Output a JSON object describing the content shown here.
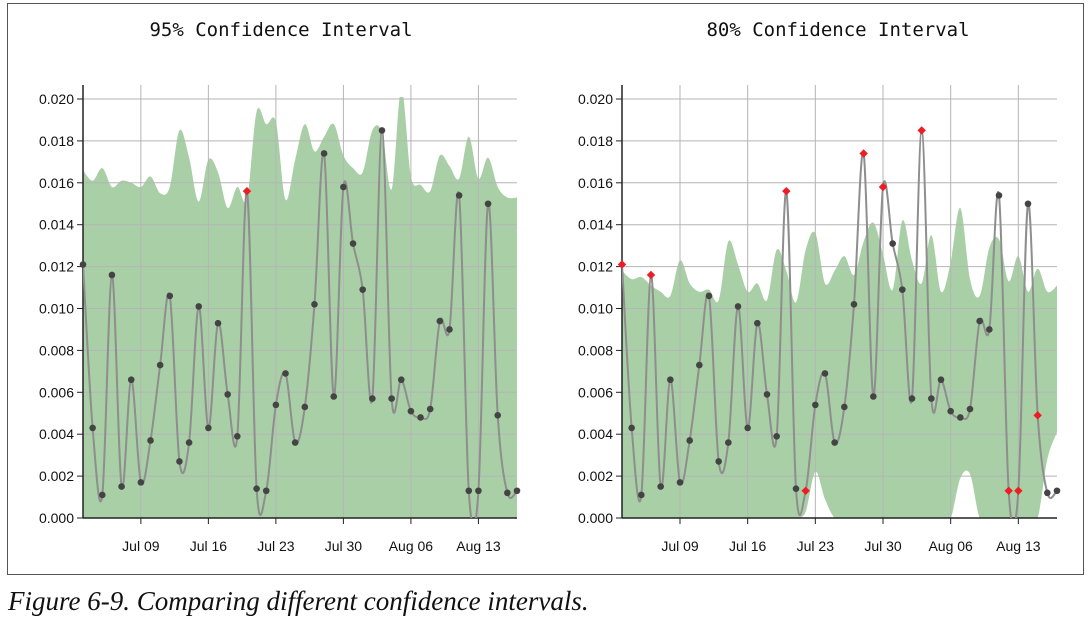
{
  "caption": "Figure 6-9. Comparing different confidence intervals.",
  "colors": {
    "band": "#a9cfa6",
    "line": "#8e8e8e",
    "point": "#444444",
    "outlier": "#ee1c25",
    "grid": "#b5b5b5",
    "axis": "#222222"
  },
  "chart_data": [
    {
      "type": "line",
      "title": "95% Confidence Interval",
      "xlabel": "",
      "ylabel": "",
      "x_ticks": [
        "Jul 09",
        "Jul 16",
        "Jul 23",
        "Jul 30",
        "Aug 06",
        "Aug 13"
      ],
      "y_ticks": [
        "0.000",
        "0.002",
        "0.004",
        "0.006",
        "0.008",
        "0.010",
        "0.012",
        "0.014",
        "0.016",
        "0.018",
        "0.020"
      ],
      "ylim": [
        0,
        0.02
      ],
      "xlim": [
        "2018-07-03",
        "2018-08-17"
      ],
      "grid": true,
      "series": [
        {
          "role": "observations",
          "x": [
            "2018-07-03",
            "2018-07-04",
            "2018-07-05",
            "2018-07-06",
            "2018-07-07",
            "2018-07-08",
            "2018-07-09",
            "2018-07-10",
            "2018-07-11",
            "2018-07-12",
            "2018-07-13",
            "2018-07-14",
            "2018-07-15",
            "2018-07-16",
            "2018-07-17",
            "2018-07-18",
            "2018-07-19",
            "2018-07-20",
            "2018-07-21",
            "2018-07-22",
            "2018-07-23",
            "2018-07-24",
            "2018-07-25",
            "2018-07-26",
            "2018-07-27",
            "2018-07-28",
            "2018-07-29",
            "2018-07-30",
            "2018-07-31",
            "2018-08-01",
            "2018-08-02",
            "2018-08-03",
            "2018-08-04",
            "2018-08-05",
            "2018-08-06",
            "2018-08-07",
            "2018-08-08",
            "2018-08-09",
            "2018-08-10",
            "2018-08-11",
            "2018-08-12",
            "2018-08-13",
            "2018-08-14",
            "2018-08-15",
            "2018-08-16",
            "2018-08-17"
          ],
          "values": [
            0.0121,
            0.0043,
            0.0011,
            0.0116,
            0.0015,
            0.0066,
            0.0017,
            0.0037,
            0.0073,
            0.0106,
            0.0027,
            0.0036,
            0.0101,
            0.0043,
            0.0093,
            0.0059,
            0.0039,
            0.0156,
            0.0014,
            0.0013,
            0.0054,
            0.0069,
            0.0036,
            0.0053,
            0.0102,
            0.0174,
            0.0058,
            0.0158,
            0.0131,
            0.0109,
            0.0057,
            0.0185,
            0.0057,
            0.0066,
            0.0051,
            0.0048,
            0.0052,
            0.0094,
            0.009,
            0.0154,
            0.0013,
            0.0013,
            0.015,
            0.0049,
            0.0012,
            0.0013
          ],
          "outliers": [
            "2018-07-20"
          ]
        },
        {
          "role": "interval",
          "upper": [
            0.0166,
            0.0161,
            0.0167,
            0.0158,
            0.0161,
            0.016,
            0.0158,
            0.0163,
            0.0155,
            0.0158,
            0.0185,
            0.0172,
            0.0151,
            0.0171,
            0.0165,
            0.0148,
            0.0158,
            0.0152,
            0.0194,
            0.0188,
            0.0189,
            0.0152,
            0.0171,
            0.0188,
            0.0175,
            0.0182,
            0.0188,
            0.0173,
            0.0167,
            0.0165,
            0.0185,
            0.0184,
            0.0157,
            0.0205,
            0.0163,
            0.0159,
            0.0156,
            0.0173,
            0.0168,
            0.0162,
            0.0182,
            0.0162,
            0.0172,
            0.0158,
            0.0153,
            0.0153
          ],
          "lower": [
            0,
            0,
            0,
            0,
            0,
            0,
            0,
            0,
            0,
            0,
            0,
            0,
            0,
            0,
            0,
            0,
            0,
            0,
            0,
            0,
            0,
            0,
            0,
            0,
            0,
            0,
            0,
            0,
            0,
            0,
            0,
            0,
            0,
            0,
            0,
            0,
            0,
            0,
            0,
            0,
            0,
            0,
            0,
            0,
            0,
            0
          ]
        }
      ]
    },
    {
      "type": "line",
      "title": "80% Confidence Interval",
      "xlabel": "",
      "ylabel": "",
      "x_ticks": [
        "Jul 09",
        "Jul 16",
        "Jul 23",
        "Jul 30",
        "Aug 06",
        "Aug 13"
      ],
      "y_ticks": [
        "0.000",
        "0.002",
        "0.004",
        "0.006",
        "0.008",
        "0.010",
        "0.012",
        "0.014",
        "0.016",
        "0.018",
        "0.020"
      ],
      "ylim": [
        0,
        0.02
      ],
      "xlim": [
        "2018-07-03",
        "2018-08-17"
      ],
      "grid": true,
      "series": [
        {
          "role": "observations",
          "x": [
            "2018-07-03",
            "2018-07-04",
            "2018-07-05",
            "2018-07-06",
            "2018-07-07",
            "2018-07-08",
            "2018-07-09",
            "2018-07-10",
            "2018-07-11",
            "2018-07-12",
            "2018-07-13",
            "2018-07-14",
            "2018-07-15",
            "2018-07-16",
            "2018-07-17",
            "2018-07-18",
            "2018-07-19",
            "2018-07-20",
            "2018-07-21",
            "2018-07-22",
            "2018-07-23",
            "2018-07-24",
            "2018-07-25",
            "2018-07-26",
            "2018-07-27",
            "2018-07-28",
            "2018-07-29",
            "2018-07-30",
            "2018-07-31",
            "2018-08-01",
            "2018-08-02",
            "2018-08-03",
            "2018-08-04",
            "2018-08-05",
            "2018-08-06",
            "2018-08-07",
            "2018-08-08",
            "2018-08-09",
            "2018-08-10",
            "2018-08-11",
            "2018-08-12",
            "2018-08-13",
            "2018-08-14",
            "2018-08-15",
            "2018-08-16",
            "2018-08-17"
          ],
          "values": [
            0.0121,
            0.0043,
            0.0011,
            0.0116,
            0.0015,
            0.0066,
            0.0017,
            0.0037,
            0.0073,
            0.0106,
            0.0027,
            0.0036,
            0.0101,
            0.0043,
            0.0093,
            0.0059,
            0.0039,
            0.0156,
            0.0014,
            0.0013,
            0.0054,
            0.0069,
            0.0036,
            0.0053,
            0.0102,
            0.0174,
            0.0058,
            0.0158,
            0.0131,
            0.0109,
            0.0057,
            0.0185,
            0.0057,
            0.0066,
            0.0051,
            0.0048,
            0.0052,
            0.0094,
            0.009,
            0.0154,
            0.0013,
            0.0013,
            0.015,
            0.0049,
            0.0012,
            0.0013
          ],
          "outliers": [
            "2018-07-03",
            "2018-07-06",
            "2018-07-20",
            "2018-07-22",
            "2018-07-28",
            "2018-07-30",
            "2018-08-03",
            "2018-08-12",
            "2018-08-13",
            "2018-08-15"
          ]
        },
        {
          "role": "interval",
          "upper": [
            0.0118,
            0.0114,
            0.0115,
            0.0111,
            0.0108,
            0.0106,
            0.0123,
            0.0112,
            0.0108,
            0.0109,
            0.0104,
            0.0132,
            0.0121,
            0.0108,
            0.0112,
            0.0104,
            0.0128,
            0.0118,
            0.0103,
            0.0128,
            0.0136,
            0.0112,
            0.0118,
            0.0125,
            0.0116,
            0.0132,
            0.0141,
            0.0126,
            0.0109,
            0.0142,
            0.0123,
            0.0112,
            0.0135,
            0.0108,
            0.0122,
            0.0148,
            0.0114,
            0.0106,
            0.0129,
            0.0133,
            0.0113,
            0.0125,
            0.0108,
            0.0119,
            0.0108,
            0.0111
          ],
          "lower": [
            0,
            0,
            0,
            0,
            0,
            0,
            0,
            0,
            0,
            0,
            0,
            0,
            0,
            0,
            0,
            0,
            0,
            0,
            0,
            0.0003,
            0.0022,
            0.0009,
            0,
            0,
            0,
            0,
            0,
            0,
            0,
            0,
            0,
            0,
            0,
            0,
            0,
            0.0019,
            0.0021,
            0,
            0,
            0,
            0,
            0,
            0,
            0,
            0.0028,
            0.0041
          ]
        }
      ]
    }
  ]
}
